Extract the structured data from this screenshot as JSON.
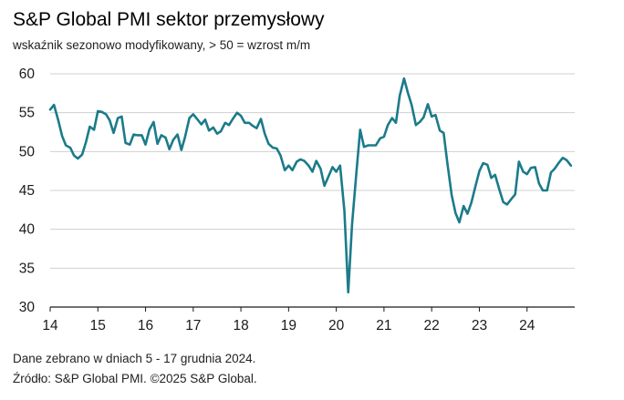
{
  "title": "S&P Global PMI sektor przemysłowy",
  "subtitle": "wskaźnik sezonowo modyfikowany, > 50 = wzrost m/m",
  "footer": {
    "note": "Dane zebrano w dniach 5 - 17 grudnia 2024.",
    "source": "Źródło: S&P Global PMI. ©2025 S&P Global."
  },
  "colors": {
    "line": "#1b7b8a",
    "grid": "#d0d0d0",
    "axis": "#1a1a1a"
  },
  "chart_data": {
    "type": "line",
    "title": "S&P Global PMI sektor przemysłowy",
    "xlabel": "",
    "ylabel": "",
    "ylim": [
      30,
      60
    ],
    "xlim": [
      2014.0,
      2025.0
    ],
    "grid": "horizontal",
    "yticks": [
      30,
      35,
      40,
      45,
      50,
      55,
      60
    ],
    "xticks": [
      {
        "label": "14",
        "x": 2014.0
      },
      {
        "label": "15",
        "x": 2015.0
      },
      {
        "label": "16",
        "x": 2016.0
      },
      {
        "label": "17",
        "x": 2017.0
      },
      {
        "label": "18",
        "x": 2018.0
      },
      {
        "label": "19",
        "x": 2019.0
      },
      {
        "label": "20",
        "x": 2020.0
      },
      {
        "label": "21",
        "x": 2021.0
      },
      {
        "label": "22",
        "x": 2022.0
      },
      {
        "label": "23",
        "x": 2023.0
      },
      {
        "label": "24",
        "x": 2024.0
      }
    ],
    "series": [
      {
        "values": [
          [
            2014.0,
            55.4
          ],
          [
            2014.08,
            56.0
          ],
          [
            2014.17,
            54.0
          ],
          [
            2014.25,
            52.0
          ],
          [
            2014.33,
            50.8
          ],
          [
            2014.42,
            50.5
          ],
          [
            2014.5,
            49.5
          ],
          [
            2014.58,
            49.1
          ],
          [
            2014.67,
            49.6
          ],
          [
            2014.75,
            51.2
          ],
          [
            2014.83,
            53.2
          ],
          [
            2014.92,
            52.8
          ],
          [
            2015.0,
            55.2
          ],
          [
            2015.08,
            55.1
          ],
          [
            2015.17,
            54.8
          ],
          [
            2015.25,
            54.0
          ],
          [
            2015.33,
            52.4
          ],
          [
            2015.42,
            54.3
          ],
          [
            2015.5,
            54.5
          ],
          [
            2015.58,
            51.1
          ],
          [
            2015.67,
            50.9
          ],
          [
            2015.75,
            52.2
          ],
          [
            2015.83,
            52.1
          ],
          [
            2015.92,
            52.1
          ],
          [
            2016.0,
            50.9
          ],
          [
            2016.08,
            52.8
          ],
          [
            2016.17,
            53.8
          ],
          [
            2016.25,
            51.0
          ],
          [
            2016.33,
            52.1
          ],
          [
            2016.42,
            51.8
          ],
          [
            2016.5,
            50.3
          ],
          [
            2016.58,
            51.5
          ],
          [
            2016.67,
            52.2
          ],
          [
            2016.75,
            50.2
          ],
          [
            2016.83,
            51.9
          ],
          [
            2016.92,
            54.3
          ],
          [
            2017.0,
            54.8
          ],
          [
            2017.08,
            54.2
          ],
          [
            2017.17,
            53.5
          ],
          [
            2017.25,
            54.1
          ],
          [
            2017.33,
            52.7
          ],
          [
            2017.42,
            53.1
          ],
          [
            2017.5,
            52.3
          ],
          [
            2017.58,
            52.6
          ],
          [
            2017.67,
            53.7
          ],
          [
            2017.75,
            53.4
          ],
          [
            2017.83,
            54.2
          ],
          [
            2017.92,
            55.0
          ],
          [
            2018.0,
            54.6
          ],
          [
            2018.08,
            53.7
          ],
          [
            2018.17,
            53.7
          ],
          [
            2018.25,
            53.3
          ],
          [
            2018.33,
            53.0
          ],
          [
            2018.42,
            54.2
          ],
          [
            2018.5,
            52.3
          ],
          [
            2018.58,
            51.0
          ],
          [
            2018.67,
            50.5
          ],
          [
            2018.75,
            50.4
          ],
          [
            2018.83,
            49.5
          ],
          [
            2018.92,
            47.6
          ],
          [
            2019.0,
            48.2
          ],
          [
            2019.08,
            47.6
          ],
          [
            2019.17,
            48.7
          ],
          [
            2019.25,
            49.0
          ],
          [
            2019.33,
            48.8
          ],
          [
            2019.42,
            48.2
          ],
          [
            2019.5,
            47.4
          ],
          [
            2019.58,
            48.8
          ],
          [
            2019.67,
            47.8
          ],
          [
            2019.75,
            45.6
          ],
          [
            2019.83,
            46.7
          ],
          [
            2019.92,
            48.0
          ],
          [
            2020.0,
            47.4
          ],
          [
            2020.08,
            48.2
          ],
          [
            2020.17,
            42.4
          ],
          [
            2020.25,
            31.9
          ],
          [
            2020.33,
            40.6
          ],
          [
            2020.42,
            47.2
          ],
          [
            2020.5,
            52.8
          ],
          [
            2020.58,
            50.6
          ],
          [
            2020.67,
            50.8
          ],
          [
            2020.75,
            50.8
          ],
          [
            2020.83,
            50.8
          ],
          [
            2020.92,
            51.7
          ],
          [
            2021.0,
            51.9
          ],
          [
            2021.08,
            53.4
          ],
          [
            2021.17,
            54.3
          ],
          [
            2021.25,
            53.7
          ],
          [
            2021.33,
            57.2
          ],
          [
            2021.42,
            59.4
          ],
          [
            2021.5,
            57.6
          ],
          [
            2021.58,
            56.0
          ],
          [
            2021.67,
            53.4
          ],
          [
            2021.75,
            53.8
          ],
          [
            2021.83,
            54.4
          ],
          [
            2021.92,
            56.1
          ],
          [
            2022.0,
            54.5
          ],
          [
            2022.08,
            54.7
          ],
          [
            2022.17,
            52.7
          ],
          [
            2022.25,
            52.4
          ],
          [
            2022.33,
            48.5
          ],
          [
            2022.42,
            44.4
          ],
          [
            2022.5,
            42.1
          ],
          [
            2022.58,
            40.9
          ],
          [
            2022.67,
            43.0
          ],
          [
            2022.75,
            42.0
          ],
          [
            2022.83,
            43.4
          ],
          [
            2022.92,
            45.6
          ],
          [
            2023.0,
            47.5
          ],
          [
            2023.08,
            48.5
          ],
          [
            2023.17,
            48.3
          ],
          [
            2023.25,
            46.6
          ],
          [
            2023.33,
            47.0
          ],
          [
            2023.42,
            45.1
          ],
          [
            2023.5,
            43.5
          ],
          [
            2023.58,
            43.2
          ],
          [
            2023.67,
            43.9
          ],
          [
            2023.75,
            44.5
          ],
          [
            2023.83,
            48.7
          ],
          [
            2023.92,
            47.4
          ],
          [
            2024.0,
            47.1
          ],
          [
            2024.08,
            47.9
          ],
          [
            2024.17,
            48.0
          ],
          [
            2024.25,
            45.9
          ],
          [
            2024.33,
            45.0
          ],
          [
            2024.42,
            45.0
          ],
          [
            2024.5,
            47.3
          ],
          [
            2024.58,
            47.8
          ],
          [
            2024.67,
            48.6
          ],
          [
            2024.75,
            49.2
          ],
          [
            2024.83,
            48.9
          ],
          [
            2024.92,
            48.2
          ]
        ]
      }
    ]
  }
}
